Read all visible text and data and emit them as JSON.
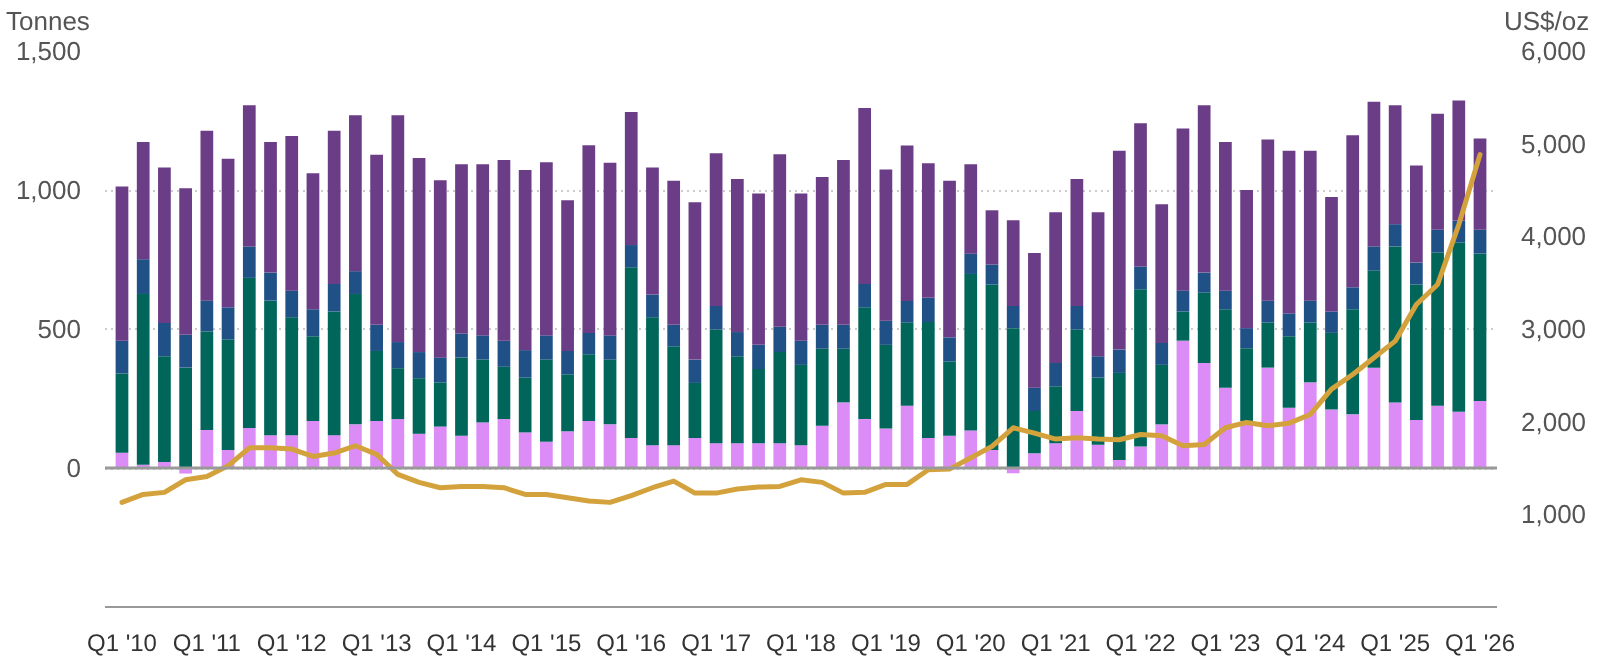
{
  "chart_data": {
    "type": "bar",
    "stacked": true,
    "categories": [
      "Q1 '10",
      null,
      null,
      null,
      "Q1 '11",
      null,
      null,
      null,
      "Q1 '12",
      null,
      null,
      null,
      "Q1 '13",
      null,
      null,
      null,
      "Q1 '14",
      null,
      null,
      null,
      "Q1 '15",
      null,
      null,
      null,
      "Q1 '16",
      null,
      null,
      null,
      "Q1 '17",
      null,
      null,
      null,
      "Q1 '18",
      null,
      null,
      null,
      "Q1 '19",
      null,
      null,
      null,
      "Q1 '20",
      null,
      null,
      null,
      "Q1 '21",
      null,
      null,
      null,
      "Q1 '22",
      null,
      null,
      null,
      "Q1 '23",
      null,
      null,
      null,
      "Q1 '24",
      null,
      null,
      null,
      "Q1 '25",
      null,
      null,
      null,
      "Q1 '26"
    ],
    "series": [
      {
        "color": "#dc8cf6",
        "values": [
          55,
          12,
          22,
          -20,
          137,
          65,
          144,
          118,
          118,
          169,
          118,
          157,
          169,
          176,
          123,
          149,
          116,
          164,
          176,
          128,
          94,
          132,
          169,
          157,
          108,
          82,
          82,
          108,
          89,
          89,
          89,
          89,
          82,
          152,
          236,
          176,
          142,
          224,
          108,
          116,
          135,
          65,
          -19,
          53,
          89,
          205,
          84,
          29,
          77,
          157,
          458,
          378,
          289,
          169,
          361,
          217,
          308,
          210,
          193,
          361,
          236,
          173,
          224,
          202,
          241
        ]
      },
      {
        "color": "#00665a",
        "values": [
          285,
          614,
          380,
          361,
          354,
          397,
          540,
          484,
          424,
          305,
          445,
          469,
          252,
          183,
          200,
          159,
          281,
          226,
          188,
          197,
          296,
          205,
          240,
          233,
          614,
          460,
          356,
          198,
          409,
          313,
          267,
          328,
          289,
          277,
          193,
          402,
          301,
          299,
          417,
          267,
          563,
          595,
          503,
          152,
          205,
          293,
          241,
          313,
          566,
          214,
          105,
          253,
          282,
          262,
          162,
          257,
          215,
          276,
          378,
          349,
          561,
          487,
          551,
          609,
          530
        ]
      },
      {
        "color": "#1f5086",
        "values": [
          118,
          125,
          120,
          118,
          111,
          116,
          113,
          101,
          96,
          97,
          99,
          82,
          94,
          94,
          94,
          89,
          87,
          87,
          94,
          99,
          87,
          84,
          77,
          87,
          80,
          82,
          77,
          84,
          85,
          87,
          87,
          91,
          87,
          86,
          86,
          84,
          87,
          78,
          87,
          87,
          73,
          72,
          80,
          84,
          84,
          85,
          77,
          84,
          82,
          79,
          75,
          72,
          67,
          72,
          79,
          82,
          79,
          77,
          79,
          87,
          80,
          79,
          82,
          78,
          86
        ]
      },
      {
        "color": "#6b3d86",
        "values": [
          555,
          422,
          559,
          527,
          611,
          534,
          508,
          470,
          556,
          489,
          551,
          561,
          612,
          816,
          698,
          638,
          609,
          616,
          650,
          648,
          623,
          542,
          675,
          621,
          479,
          457,
          518,
          566,
          549,
          551,
          544,
          621,
          529,
          532,
          593,
          633,
          544,
          559,
          484,
          563,
          322,
          195,
          308,
          484,
          542,
          457,
          518,
          715,
          515,
          499,
          583,
          602,
          535,
          497,
          580,
          585,
          539,
          412,
          547,
          520,
          428,
          349,
          417,
          433,
          328
        ]
      },
      {
        "type": "line",
        "axis": "y2",
        "color": "#d4a23c",
        "values": [
          1129,
          1215,
          1237,
          1373,
          1409,
          1524,
          1718,
          1718,
          1704,
          1625,
          1661,
          1740,
          1647,
          1431,
          1345,
          1287,
          1301,
          1301,
          1287,
          1215,
          1215,
          1179,
          1143,
          1129,
          1201,
          1287,
          1359,
          1229,
          1229,
          1273,
          1294,
          1301,
          1373,
          1345,
          1229,
          1237,
          1323,
          1323,
          1481,
          1488,
          1611,
          1733,
          1934,
          1877,
          1812,
          1826,
          1812,
          1805,
          1862,
          1848,
          1740,
          1754,
          1934,
          1992,
          1956,
          1984,
          2078,
          2351,
          2509,
          2689,
          2869,
          3264,
          3480,
          4127,
          4882
        ]
      }
    ],
    "ylabel": "Tonnes",
    "y2label": "US$/oz",
    "ylim": [
      -500,
      1500
    ],
    "yticks": [
      0,
      500,
      {
        "value": 1000,
        "label": "1,000"
      },
      {
        "value": 1500,
        "label": "1,500"
      }
    ],
    "y2lim": [
      0,
      6000
    ],
    "y2ticks": [
      {
        "value": 1000,
        "label": "1,000"
      },
      {
        "value": 2000,
        "label": "2,000"
      },
      {
        "value": 3000,
        "label": "3,000"
      },
      {
        "value": 4000,
        "label": "4,000"
      },
      {
        "value": 5000,
        "label": "5,000"
      },
      {
        "value": 6000,
        "label": "6,000"
      }
    ],
    "grid": "y",
    "ref_lines": [
      {
        "axis": "y",
        "value": 0
      }
    ]
  }
}
